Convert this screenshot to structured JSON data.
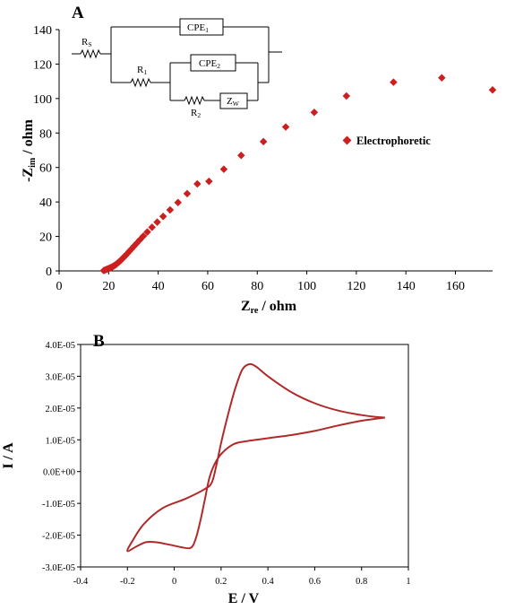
{
  "chart_data": [
    {
      "panel": "A",
      "type": "scatter",
      "ylabel": {
        "main": "-Z",
        "sub": "im",
        "rest": " / ohm"
      },
      "xlabel": {
        "main": "Z",
        "sub": "re",
        "rest": " / ohm"
      },
      "xlim": [
        0,
        175
      ],
      "ylim": [
        0,
        140
      ],
      "xticks": [
        0,
        20,
        40,
        60,
        80,
        100,
        120,
        140,
        160
      ],
      "yticks": [
        0,
        20,
        40,
        60,
        80,
        100,
        120,
        140
      ],
      "series": [
        {
          "name": "Electrophoretic",
          "color": "#cc1f1f",
          "marker": "diamond",
          "points": [
            [
              18,
              0.2
            ],
            [
              18.5,
              0.5
            ],
            [
              19,
              0.8
            ],
            [
              19.5,
              1.1
            ],
            [
              20,
              1.4
            ],
            [
              20.5,
              1.7
            ],
            [
              21,
              2.0
            ],
            [
              21.5,
              2.4
            ],
            [
              22,
              2.8
            ],
            [
              22.5,
              3.3
            ],
            [
              23,
              3.8
            ],
            [
              23.5,
              4.4
            ],
            [
              24,
              5.0
            ],
            [
              24.5,
              5.6
            ],
            [
              25,
              6.3
            ],
            [
              25.5,
              7.0
            ],
            [
              26,
              7.8
            ],
            [
              26.7,
              8.8
            ],
            [
              27.5,
              10
            ],
            [
              28.3,
              11.3
            ],
            [
              29.2,
              12.7
            ],
            [
              30.2,
              14.3
            ],
            [
              31.3,
              16
            ],
            [
              32.6,
              18
            ],
            [
              34,
              20.2
            ],
            [
              35.6,
              22.6
            ],
            [
              37.5,
              25.3
            ],
            [
              39.6,
              28.3
            ],
            [
              42,
              31.6
            ],
            [
              44.8,
              35.4
            ],
            [
              48,
              39.7
            ],
            [
              51.7,
              44.8
            ],
            [
              55.8,
              50.5
            ],
            [
              60.5,
              52
            ],
            [
              66.5,
              59
            ],
            [
              73.5,
              67
            ],
            [
              82.5,
              75
            ],
            [
              91.5,
              83.5
            ],
            [
              103,
              92
            ],
            [
              116,
              101.5
            ],
            [
              135,
              109.5
            ],
            [
              154.5,
              112
            ],
            [
              175,
              105
            ]
          ]
        }
      ],
      "legend": {
        "label": "Electrophoretic",
        "position": "right"
      },
      "circuit": {
        "Rs": "R",
        "Rs_sub": "S",
        "R1": "R",
        "R1_sub": "1",
        "R2": "R",
        "R2_sub": "2",
        "CPE1": "CPE",
        "CPE1_sub": "1",
        "CPE2": "CPE",
        "CPE2_sub": "2",
        "Zw": "Z",
        "Zw_sub": "W"
      }
    },
    {
      "panel": "B",
      "type": "line",
      "xlabel": "E / V",
      "ylabel": "I / A",
      "xlim": [
        -0.4,
        1
      ],
      "ylim": [
        -3e-05,
        4e-05
      ],
      "xticks": [
        "-0.4",
        "-0.2",
        "0",
        "0.2",
        "0.4",
        "0.6",
        "0.8",
        "1"
      ],
      "yticks": [
        "4.0E-05",
        "3.0E-05",
        "2.0E-05",
        "1.0E-05",
        "0.0E+00",
        "-1.0E-05",
        "-2.0E-05",
        "-3.0E-05"
      ],
      "series": [
        {
          "color": "#b02a2a",
          "points": [
            [
              0.9,
              1.7e-05
            ],
            [
              0.8,
              1.6e-05
            ],
            [
              0.7,
              1.45e-05
            ],
            [
              0.6,
              1.28e-05
            ],
            [
              0.5,
              1.15e-05
            ],
            [
              0.4,
              1.05e-05
            ],
            [
              0.3,
              9.5e-06
            ],
            [
              0.25,
              8.5e-06
            ],
            [
              0.2,
              5.5e-06
            ],
            [
              0.17,
              2e-06
            ],
            [
              0.15,
              -2e-06
            ],
            [
              0.13,
              -9e-06
            ],
            [
              0.11,
              -1.6e-05
            ],
            [
              0.09,
              -2.15e-05
            ],
            [
              0.07,
              -2.4e-05
            ],
            [
              0.03,
              -2.38e-05
            ],
            [
              -0.02,
              -2.3e-05
            ],
            [
              -0.08,
              -2.22e-05
            ],
            [
              -0.12,
              -2.22e-05
            ],
            [
              -0.16,
              -2.35e-05
            ],
            [
              -0.2,
              -2.5e-05
            ],
            [
              -0.18,
              -2.2e-05
            ],
            [
              -0.13,
              -1.65e-05
            ],
            [
              -0.05,
              -1.15e-05
            ],
            [
              0.05,
              -8.5e-06
            ],
            [
              0.13,
              -5.5e-06
            ],
            [
              0.16,
              -3.5e-06
            ],
            [
              0.18,
              2e-06
            ],
            [
              0.2,
              9e-06
            ],
            [
              0.23,
              1.8e-05
            ],
            [
              0.26,
              2.6e-05
            ],
            [
              0.29,
              3.2e-05
            ],
            [
              0.32,
              3.38e-05
            ],
            [
              0.35,
              3.3e-05
            ],
            [
              0.4,
              3e-05
            ],
            [
              0.5,
              2.5e-05
            ],
            [
              0.6,
              2.15e-05
            ],
            [
              0.7,
              1.92e-05
            ],
            [
              0.8,
              1.78e-05
            ],
            [
              0.86,
              1.72e-05
            ],
            [
              0.9,
              1.7e-05
            ]
          ]
        }
      ]
    }
  ]
}
